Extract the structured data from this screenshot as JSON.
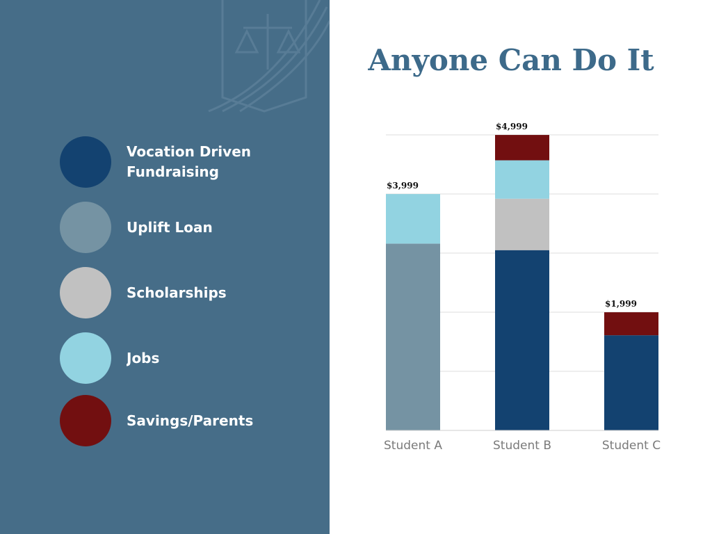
{
  "chart_data": {
    "type": "stacked_bar",
    "title": "Anyone Can Do It",
    "categories": [
      "Student A",
      "Student B",
      "Student C"
    ],
    "series": [
      {
        "name": "Vocation Driven Fundraising",
        "color": "#134270",
        "values": [
          null,
          3050,
          1610
        ]
      },
      {
        "name": "Uplift Loan",
        "color": "#7593a3",
        "values": [
          3160,
          null,
          null
        ]
      },
      {
        "name": "Scholarships",
        "color": "#c1c1c1",
        "values": [
          null,
          870,
          null
        ]
      },
      {
        "name": "Jobs",
        "color": "#92d3e1",
        "values": [
          839,
          650,
          null
        ]
      },
      {
        "name": "Savings/Parents",
        "color": "#720f10",
        "values": [
          null,
          429,
          389
        ]
      }
    ],
    "totals": [
      3999,
      4999,
      1999
    ],
    "total_labels": [
      "$3,999",
      "$4,999",
      "$1,999"
    ],
    "ylim": [
      0,
      5000
    ],
    "yticks": [
      0,
      1000,
      2000,
      3000,
      4000,
      5000
    ],
    "grid": true
  }
}
